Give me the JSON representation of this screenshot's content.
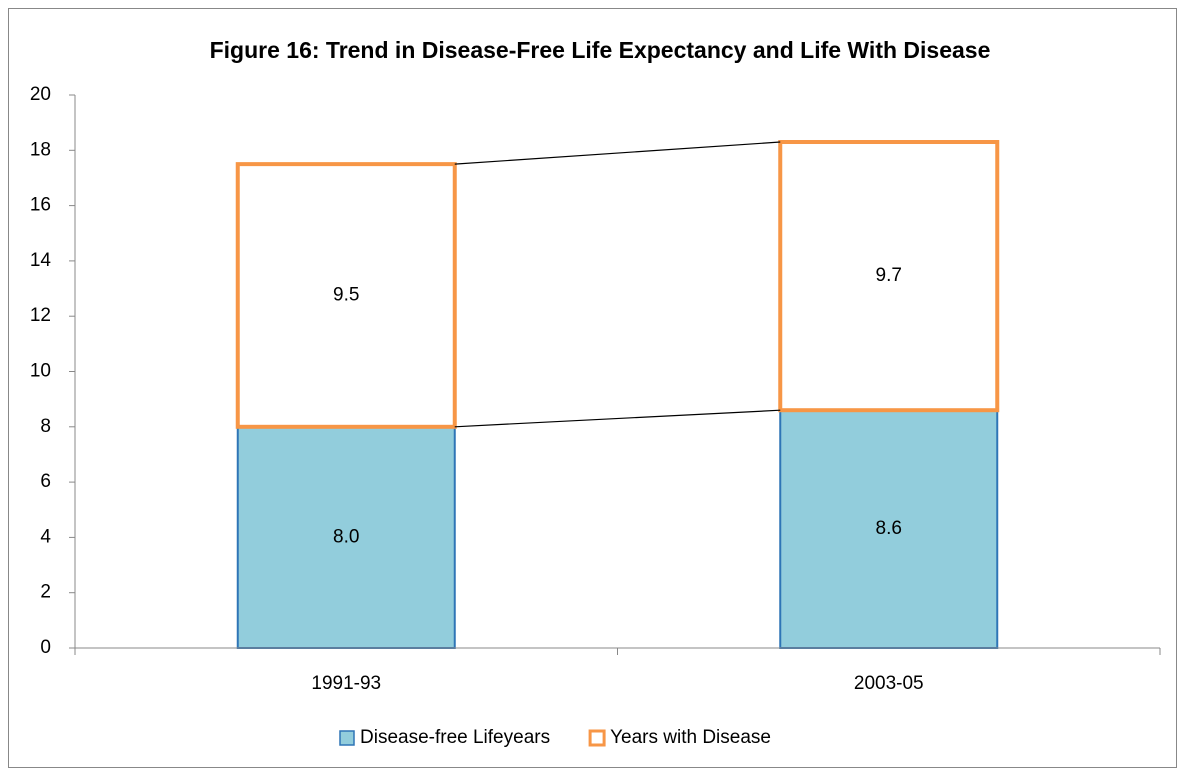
{
  "chart_data": {
    "type": "stacked_bar",
    "title": "Figure 16: Trend in Disease-Free Life Expectancy and Life With Disease",
    "categories": [
      "1991-93",
      "2003-05"
    ],
    "series": [
      {
        "name": "Disease-free Lifeyears",
        "color": "#92cddc",
        "edge": "#2e75b6",
        "values": [
          8.0,
          8.6
        ],
        "value_labels": [
          "8.0",
          "8.6"
        ]
      },
      {
        "name": "Years with Disease",
        "color": "#ffffff",
        "edge": "#f79646",
        "values": [
          9.5,
          9.7
        ],
        "value_labels": [
          "9.5",
          "9.7"
        ]
      }
    ],
    "ylim": [
      0,
      20
    ],
    "yticks": [
      0,
      2,
      4,
      6,
      8,
      10,
      12,
      14,
      16,
      18,
      20
    ],
    "series_lines": true,
    "grid": false,
    "legend": "bottom"
  }
}
